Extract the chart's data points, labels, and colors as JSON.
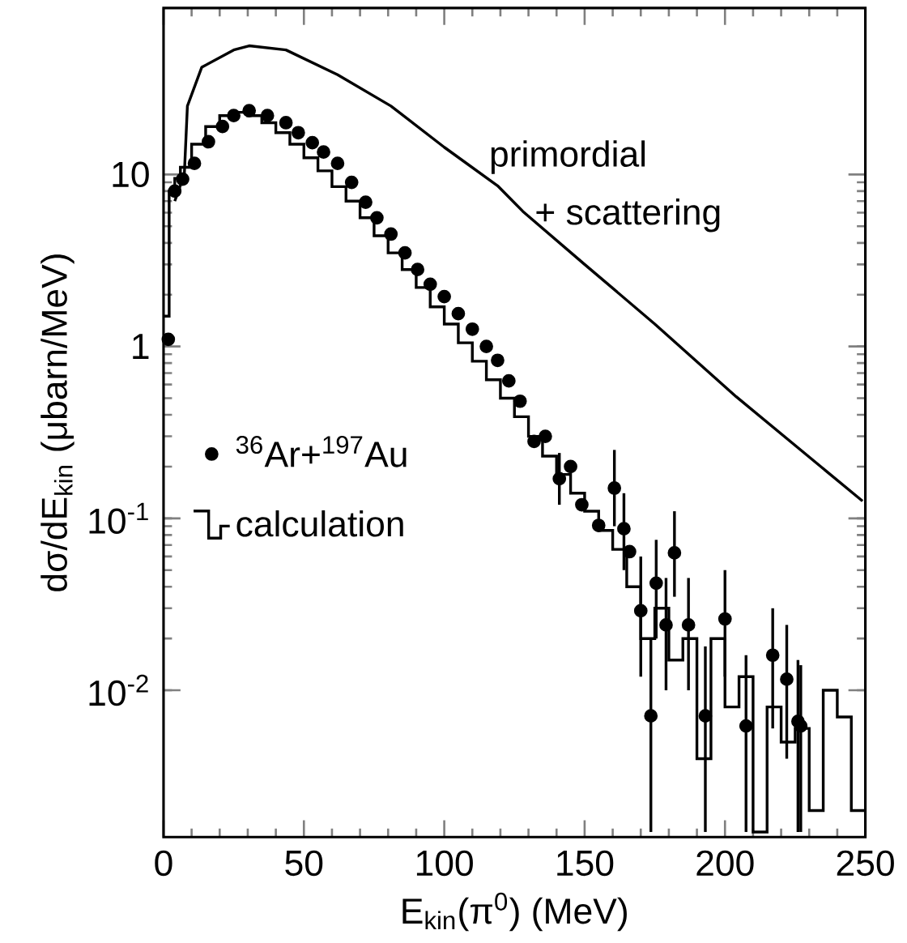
{
  "chart_data": {
    "type": "scatter",
    "xlabel": "E$_{kin}$(π$^{0}$)    (MeV)",
    "ylabel": "dσ/dE$_{kin}$  (μbarn/MeV)",
    "log": "y",
    "xlim": [
      0,
      250
    ],
    "ylim": [
      0.0014,
      93
    ],
    "xticks": [
      0,
      50,
      100,
      150,
      200,
      250
    ],
    "yticks": [
      {
        "value": 0.01,
        "label": "10$^{-2}$"
      },
      {
        "value": 0.1,
        "label": "10$^{-1}$"
      },
      {
        "value": 1,
        "label": "1"
      },
      {
        "value": 10,
        "label": "10"
      }
    ],
    "legend": "left",
    "annotations": [
      "primordial",
      "+ scattering"
    ],
    "series": [
      {
        "name": "$^{36}$Ar+$^{197}$Au",
        "marker": "circle",
        "color": "#000000",
        "x": [
          1.7,
          4,
          6.8,
          11,
          16,
          21,
          25,
          30.5,
          37,
          43.6,
          48,
          53,
          57,
          62,
          67,
          72,
          76,
          81,
          86,
          90.5,
          95,
          100,
          105,
          110,
          115,
          119,
          123,
          127,
          132,
          136,
          141,
          145,
          149,
          155,
          160.6,
          164,
          166,
          170,
          173.6,
          175.5,
          179,
          182,
          187,
          193,
          200,
          207.5,
          217,
          222,
          226,
          227
        ],
        "values": [
          1.1,
          8,
          9.4,
          11.6,
          15.5,
          19,
          22,
          23.5,
          22,
          20,
          17.5,
          15.3,
          13.5,
          11.6,
          9,
          6.9,
          5.6,
          4.5,
          3.5,
          2.8,
          2.3,
          1.95,
          1.55,
          1.26,
          1.0,
          0.83,
          0.63,
          0.48,
          0.28,
          0.3,
          0.17,
          0.2,
          0.12,
          0.091,
          0.15,
          0.087,
          0.064,
          0.029,
          0.0071,
          0.042,
          0.024,
          0.063,
          0.024,
          0.0071,
          0.026,
          0.0062,
          0.016,
          0.0116,
          0.0066,
          0.0062
        ],
        "errors": [
          null,
          null,
          null,
          null,
          null,
          null,
          null,
          null,
          null,
          null,
          null,
          null,
          null,
          null,
          null,
          null,
          null,
          null,
          null,
          null,
          null,
          null,
          null,
          null,
          null,
          null,
          null,
          null,
          null,
          null,
          [
            0.12,
            0.24
          ],
          null,
          null,
          null,
          [
            0.09,
            0.25
          ],
          [
            0.05,
            0.14
          ],
          null,
          [
            0.012,
            0.06
          ],
          [
            0.0015,
            0.02
          ],
          [
            0.02,
            0.075
          ],
          [
            0.01,
            0.045
          ],
          [
            0.035,
            0.11
          ],
          [
            0.01,
            0.045
          ],
          [
            0.0015,
            0.018
          ],
          [
            0.012,
            0.05
          ],
          [
            0.0015,
            0.016
          ],
          [
            0.006,
            0.03
          ],
          [
            0.004,
            0.024
          ],
          [
            0.0015,
            0.015
          ],
          [
            0.0015,
            0.014
          ]
        ]
      },
      {
        "name": "calculation",
        "type": "step",
        "color": "#000000",
        "x": [
          0,
          2,
          4,
          6,
          10,
          15,
          20,
          25,
          30,
          35,
          40,
          45,
          50,
          55,
          60,
          65,
          70,
          75,
          80,
          85,
          90,
          95,
          100,
          105,
          110,
          115,
          120,
          125,
          130,
          135,
          140,
          145,
          150,
          155,
          160,
          165,
          170,
          175,
          180,
          185,
          190,
          195,
          200,
          205,
          210,
          215,
          220,
          225,
          230,
          235,
          240,
          245,
          250
        ],
        "values": [
          1.5,
          8,
          9.5,
          11,
          15,
          19,
          22,
          23,
          22,
          20,
          17.5,
          15,
          12.5,
          10.5,
          8.5,
          7,
          5.6,
          4.4,
          3.5,
          2.8,
          2.2,
          1.7,
          1.35,
          1.05,
          0.82,
          0.64,
          0.5,
          0.39,
          0.3,
          0.23,
          0.18,
          0.14,
          0.11,
          0.085,
          0.066,
          0.04,
          0.02,
          0.03,
          0.015,
          0.02,
          0.004,
          0.02,
          0.008,
          0.012,
          0.0015,
          0.008,
          0.005,
          0.006,
          0.002,
          0.01,
          0.007,
          0.002,
          0.002
        ]
      },
      {
        "type": "line",
        "color": "#000000",
        "x": [
          4,
          7.4,
          8.5,
          13.6,
          25,
          30.5,
          43.6,
          62,
          81,
          100,
          119,
          128,
          150,
          175,
          204,
          249
        ],
        "values": [
          7,
          10,
          25,
          42,
          53,
          56,
          53,
          38,
          25,
          14.4,
          8.6,
          6.1,
          3.0,
          1.35,
          0.51,
          0.126
        ]
      }
    ]
  }
}
